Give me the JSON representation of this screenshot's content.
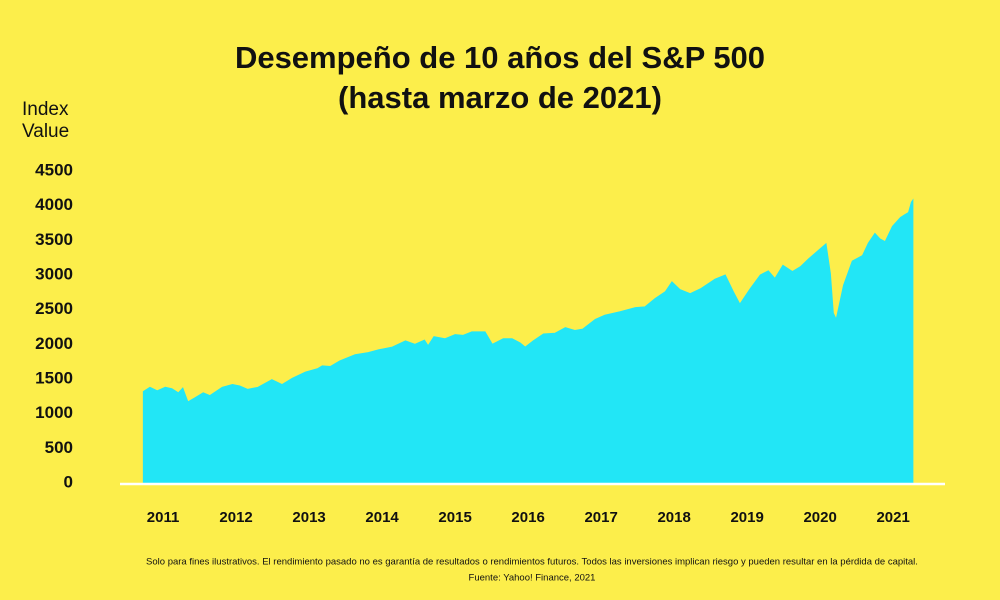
{
  "chart_data": {
    "type": "area",
    "title": "Desempeño de 10 años del S&P 500",
    "subtitle": "(hasta marzo de 2021)",
    "y_label": "Index Value",
    "note": "Solo para fines ilustrativos. El rendimiento pasado no es garantía de resultados o rendimientos futuros. Todos las inversiones implican riesgo y pueden resultar en la pérdida de capital.",
    "source": "Fuente: Yahoo! Finance, 2021",
    "color": "#22e6f6",
    "x": [
      2010.73,
      2010.82,
      2010.92,
      2011.03,
      2011.12,
      2011.21,
      2011.27,
      2011.34,
      2011.44,
      2011.55,
      2011.64,
      2011.81,
      2011.95,
      2012.05,
      2012.16,
      2012.3,
      2012.49,
      2012.63,
      2012.77,
      2012.95,
      2013.12,
      2013.18,
      2013.29,
      2013.42,
      2013.63,
      2013.81,
      2013.95,
      2014.14,
      2014.32,
      2014.45,
      2014.58,
      2014.63,
      2014.71,
      2014.86,
      2015.0,
      2015.11,
      2015.23,
      2015.41,
      2015.51,
      2015.66,
      2015.78,
      2015.89,
      2015.96,
      2016.07,
      2016.21,
      2016.37,
      2016.51,
      2016.64,
      2016.75,
      2016.92,
      2017.05,
      2017.26,
      2017.47,
      2017.6,
      2017.74,
      2017.88,
      2017.97,
      2018.08,
      2018.22,
      2018.36,
      2018.56,
      2018.7,
      2018.81,
      2018.9,
      2019.04,
      2019.18,
      2019.29,
      2019.38,
      2019.49,
      2019.62,
      2019.73,
      2019.84,
      2019.97,
      2020.08,
      2020.14,
      2020.18,
      2020.22,
      2020.32,
      2020.44,
      2020.58,
      2020.66,
      2020.75,
      2020.82,
      2020.89,
      2020.99,
      2021.1,
      2021.16,
      2021.21,
      2021.25,
      2021.27
    ],
    "values": [
      1320,
      1380,
      1330,
      1380,
      1360,
      1300,
      1370,
      1170,
      1230,
      1300,
      1260,
      1380,
      1420,
      1400,
      1350,
      1380,
      1490,
      1420,
      1510,
      1600,
      1650,
      1690,
      1680,
      1760,
      1850,
      1880,
      1920,
      1960,
      2050,
      2000,
      2060,
      1980,
      2110,
      2080,
      2140,
      2130,
      2180,
      2180,
      2000,
      2080,
      2080,
      2020,
      1960,
      2050,
      2150,
      2160,
      2240,
      2200,
      2220,
      2360,
      2420,
      2470,
      2530,
      2540,
      2660,
      2760,
      2900,
      2790,
      2730,
      2800,
      2940,
      3000,
      2760,
      2580,
      2800,
      3000,
      3060,
      2950,
      3140,
      3050,
      3120,
      3230,
      3350,
      3450,
      3020,
      2450,
      2360,
      2850,
      3200,
      3280,
      3460,
      3600,
      3520,
      3480,
      3700,
      3830,
      3870,
      3900,
      4050,
      4080
    ],
    "xlim": [
      2010.41,
      2021.71
    ],
    "xticks": [
      2011,
      2012,
      2013,
      2014,
      2015,
      2016,
      2017,
      2018,
      2019,
      2020,
      2021
    ],
    "ylim": [
      0,
      4500
    ],
    "yticks": [
      0,
      500,
      1000,
      1500,
      2000,
      2500,
      3000,
      3500,
      4000,
      4500
    ]
  }
}
